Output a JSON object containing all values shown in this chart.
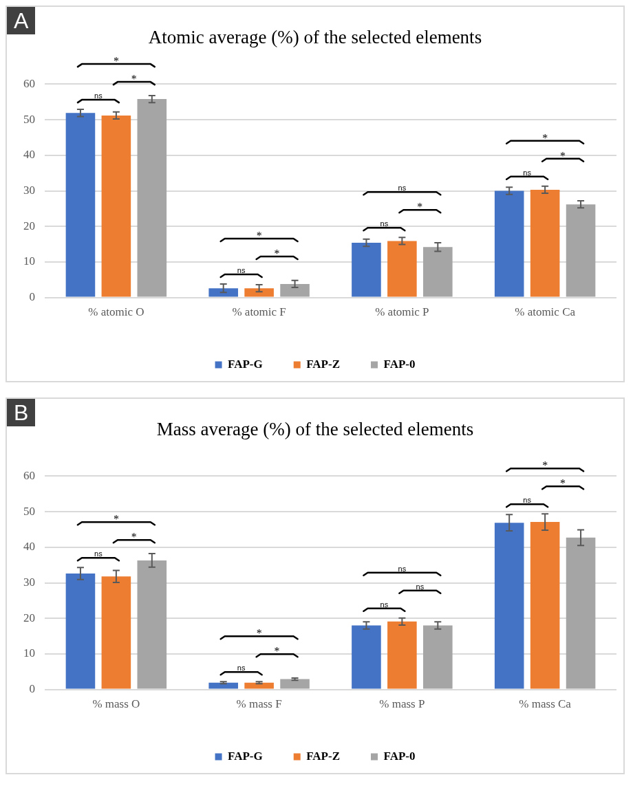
{
  "chart_data": [
    {
      "type": "bar",
      "title": "Atomic average (%) of the selected elements",
      "categories": [
        "% atomic O",
        "% atomic F",
        "% atomic P",
        "% atomic Ca"
      ],
      "series": [
        {
          "name": "FAP-G",
          "color": "#4472c4",
          "values": [
            51.9,
            2.6,
            15.4,
            30.0
          ],
          "errors": [
            1,
            1.2,
            1,
            1
          ]
        },
        {
          "name": "FAP-Z",
          "color": "#ed7d31",
          "values": [
            51.2,
            2.6,
            15.9,
            30.3
          ],
          "errors": [
            1,
            1,
            1,
            1
          ]
        },
        {
          "name": "FAP-0",
          "color": "#a5a5a5",
          "values": [
            55.8,
            3.8,
            14.2,
            26.2
          ],
          "errors": [
            1,
            1,
            1.2,
            1
          ]
        }
      ],
      "ylim": [
        0,
        60
      ],
      "yticks": [
        0,
        10,
        20,
        30,
        40,
        50,
        60
      ],
      "grid": "y",
      "legend": "bottom",
      "annotations": [
        "A",
        "ns",
        "*",
        "*",
        "ns",
        "*",
        "*",
        "ns",
        "*",
        "ns",
        "ns",
        "*",
        "*"
      ]
    },
    {
      "type": "bar",
      "title": "Mass average (%) of the selected elements",
      "categories": [
        "% mass O",
        "% mass F",
        "% mass P",
        "% mass Ca"
      ],
      "series": [
        {
          "name": "FAP-G",
          "color": "#4472c4",
          "values": [
            32.6,
            1.9,
            18.0,
            46.9
          ],
          "errors": [
            1.7,
            0.3,
            1,
            2.3
          ]
        },
        {
          "name": "FAP-Z",
          "color": "#ed7d31",
          "values": [
            31.8,
            1.9,
            19.1,
            47.1
          ],
          "errors": [
            1.7,
            0.3,
            1,
            2.3
          ]
        },
        {
          "name": "FAP-0",
          "color": "#a5a5a5",
          "values": [
            36.3,
            2.9,
            18.0,
            42.7
          ],
          "errors": [
            1.9,
            0.3,
            1,
            2.2
          ]
        }
      ],
      "ylim": [
        0,
        60
      ],
      "yticks": [
        0,
        10,
        20,
        30,
        40,
        50,
        60
      ],
      "grid": "y",
      "legend": "bottom",
      "annotations": [
        "B",
        "ns",
        "*",
        "*",
        "ns",
        "*",
        "*",
        "ns",
        "ns",
        "ns",
        "ns",
        "*",
        "*"
      ]
    }
  ]
}
